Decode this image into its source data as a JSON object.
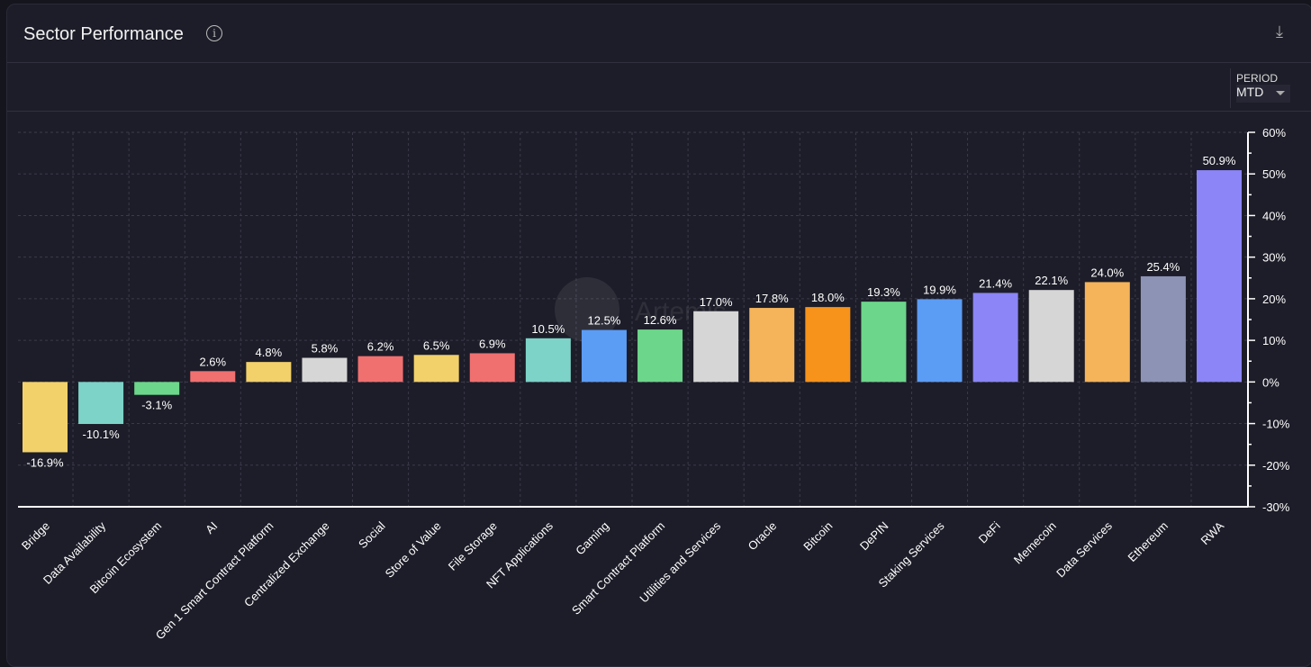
{
  "header": {
    "title": "Sector Performance",
    "info_icon": "info-icon",
    "download_icon": "download-icon"
  },
  "toolbar": {
    "period_label": "PERIOD",
    "period_value": "MTD"
  },
  "watermark": "Artemis",
  "chart_data": {
    "type": "bar",
    "title": "",
    "xlabel": "",
    "ylabel": "",
    "ylim": [
      -30,
      60
    ],
    "yticks": [
      "60%",
      "50%",
      "40%",
      "30%",
      "20%",
      "10%",
      "0%",
      "-10%",
      "-20%",
      "-30%"
    ],
    "grid": true,
    "categories": [
      "Bridge",
      "Data Availability",
      "Bitcoin Ecosystem",
      "AI",
      "Gen 1 Smart Contract Platform",
      "Centralized Exchange",
      "Social",
      "Store of Value",
      "File Storage",
      "NFT Applications",
      "Gaming",
      "Smart Contract Platform",
      "Utilities and Services",
      "Oracle",
      "Bitcoin",
      "DePIN",
      "Staking Services",
      "DeFi",
      "Memecoin",
      "Data Services",
      "Ethereum",
      "RWA"
    ],
    "values": [
      -16.9,
      -10.1,
      -3.1,
      2.6,
      4.8,
      5.8,
      6.2,
      6.5,
      6.9,
      10.5,
      12.5,
      12.6,
      17.0,
      17.8,
      18.0,
      19.3,
      19.9,
      21.4,
      22.1,
      24.0,
      25.4,
      50.9
    ],
    "labels": [
      "-16.9%",
      "-10.1%",
      "-3.1%",
      "2.6%",
      "4.8%",
      "5.8%",
      "6.2%",
      "6.5%",
      "6.9%",
      "10.5%",
      "12.5%",
      "12.6%",
      "17.0%",
      "17.8%",
      "18.0%",
      "19.3%",
      "19.9%",
      "21.4%",
      "22.1%",
      "24.0%",
      "25.4%",
      "50.9%"
    ],
    "colors": [
      "#f2d16b",
      "#7dd3c8",
      "#6cd68a",
      "#f07070",
      "#f2d16b",
      "#d6d6d6",
      "#f07070",
      "#f2d16b",
      "#f07070",
      "#7dd3c8",
      "#5b9cf5",
      "#6cd68a",
      "#d6d6d6",
      "#f5b45a",
      "#f7931a",
      "#6cd68a",
      "#5b9cf5",
      "#8b85f7",
      "#d6d6d6",
      "#f5b45a",
      "#8c93b5",
      "#8b85f7"
    ]
  }
}
